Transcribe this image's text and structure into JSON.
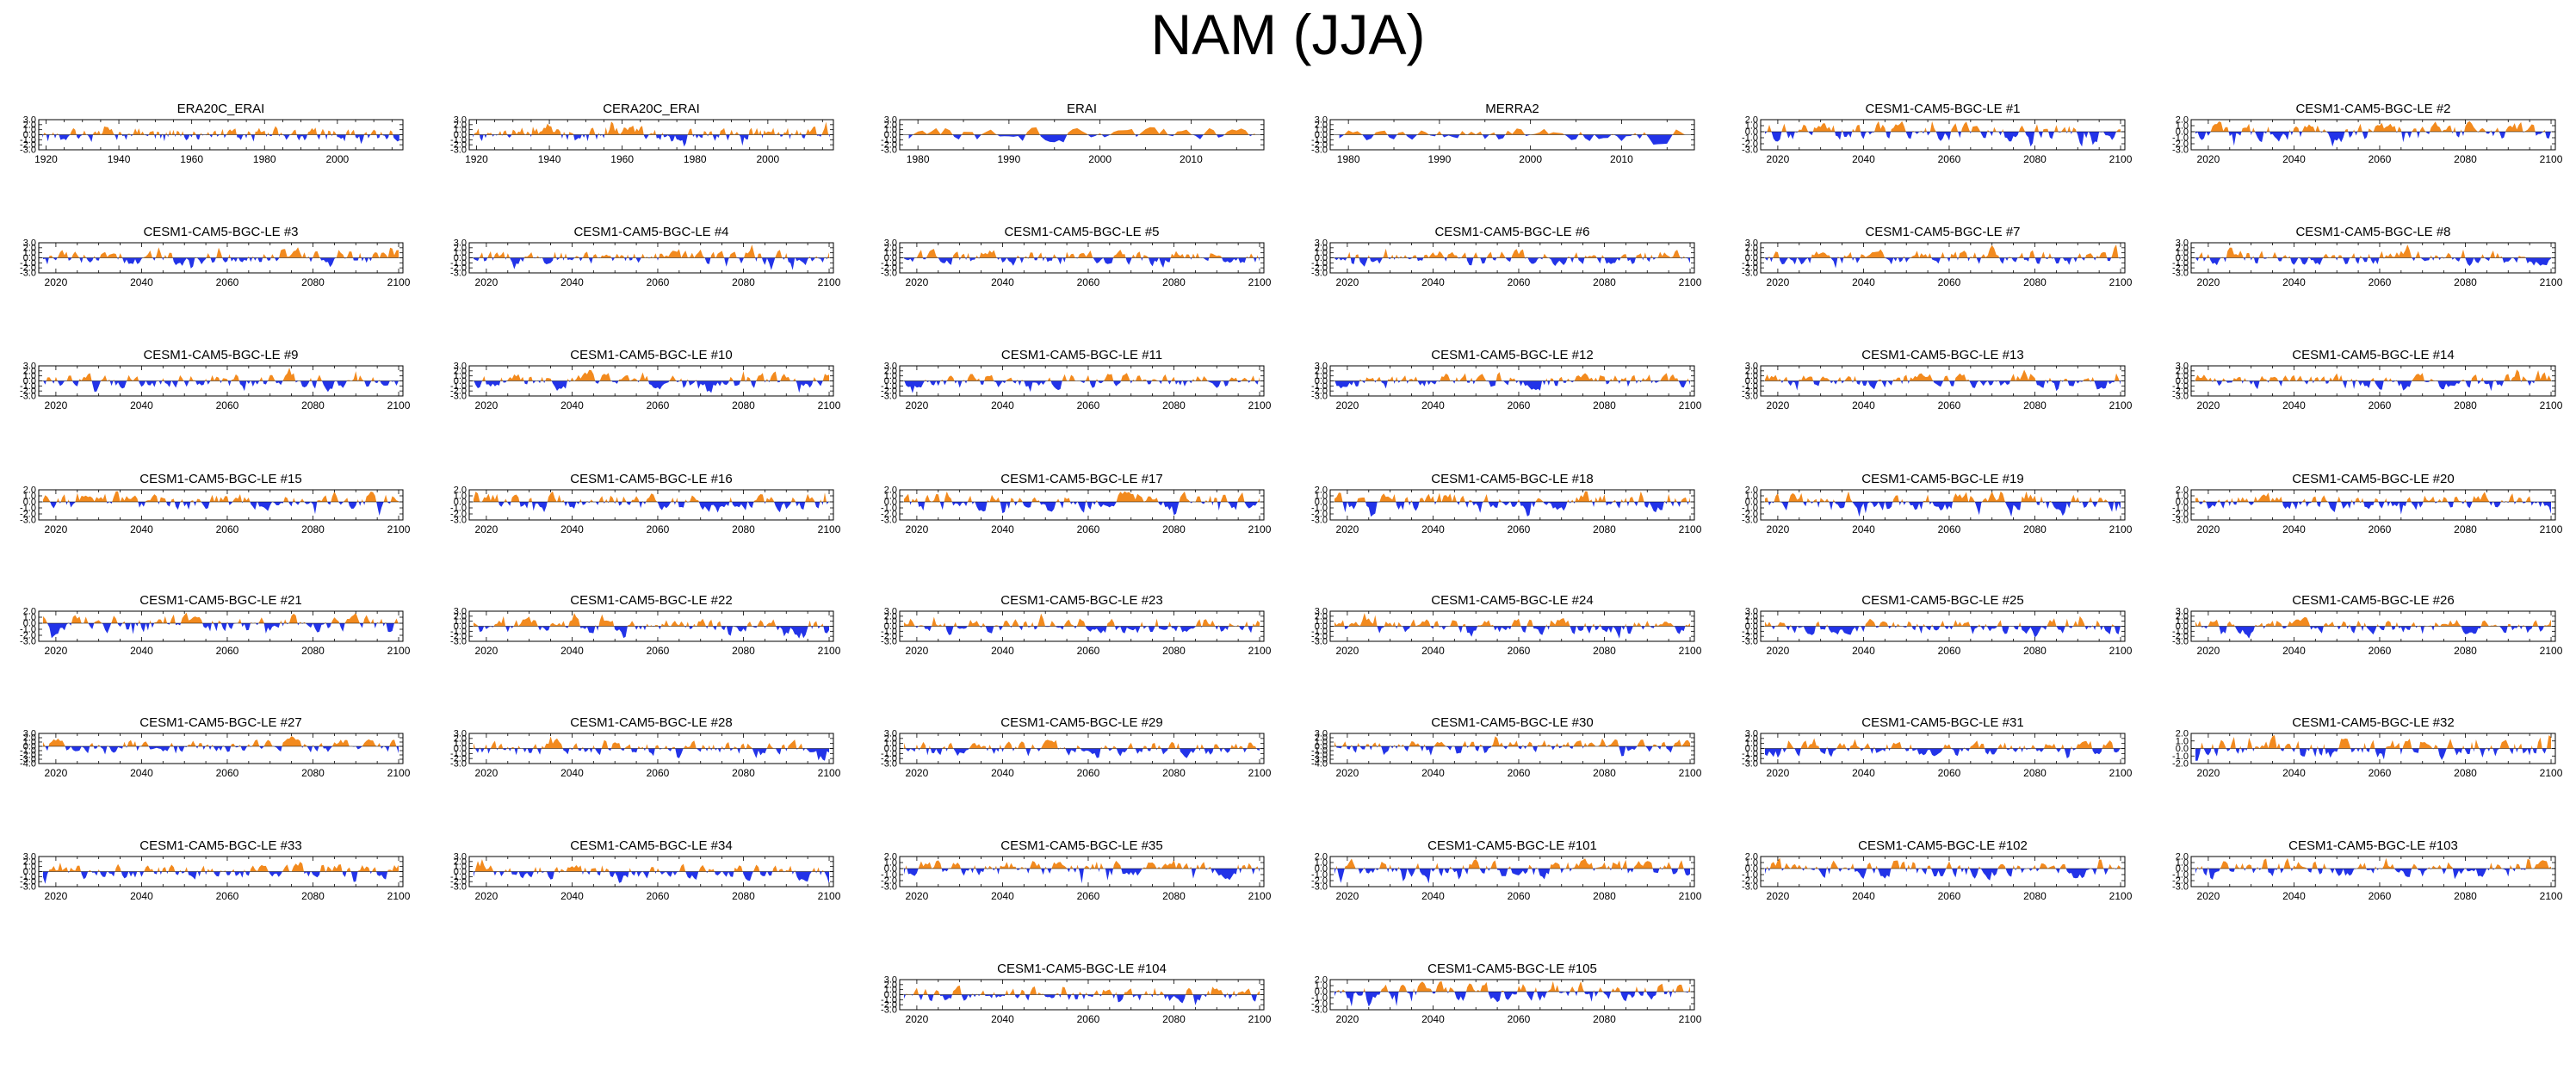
{
  "figure": {
    "title": "NAM (JJA)"
  },
  "colors": {
    "positive": "#f28a1e",
    "negative": "#2233e8",
    "axis": "#000000",
    "background": "#ffffff"
  },
  "chart_data": [
    {
      "type": "area",
      "title": "ERA20C_ERAI",
      "xlim": [
        1918,
        2018
      ],
      "ylim": [
        -3.0,
        3.0
      ],
      "yticks": [
        3.0,
        2.0,
        1.0,
        0.0,
        -1.0,
        -2.0,
        -3.0
      ],
      "xticks": [
        1920,
        1940,
        1960,
        1980,
        2000
      ],
      "grid": false,
      "legend": "none",
      "seed": 1
    },
    {
      "type": "area",
      "title": "CERA20C_ERAI",
      "xlim": [
        1918,
        2018
      ],
      "ylim": [
        -3.0,
        3.0
      ],
      "yticks": [
        3.0,
        2.0,
        1.0,
        0.0,
        -1.0,
        -2.0,
        -3.0
      ],
      "xticks": [
        1920,
        1940,
        1960,
        1980,
        2000
      ],
      "grid": false,
      "legend": "none",
      "seed": 2
    },
    {
      "type": "area",
      "title": "ERAI",
      "xlim": [
        1978,
        2018
      ],
      "ylim": [
        -3.0,
        3.0
      ],
      "yticks": [
        3.0,
        2.0,
        1.0,
        0.0,
        -1.0,
        -2.0,
        -3.0
      ],
      "xticks": [
        1980,
        1990,
        2000,
        2010
      ],
      "grid": false,
      "legend": "none",
      "seed": 3
    },
    {
      "type": "area",
      "title": "MERRA2",
      "xlim": [
        1978,
        2018
      ],
      "ylim": [
        -3.0,
        3.0
      ],
      "yticks": [
        3.0,
        2.0,
        1.0,
        0.0,
        -1.0,
        -2.0,
        -3.0
      ],
      "xticks": [
        1980,
        1990,
        2000,
        2010
      ],
      "grid": false,
      "legend": "none",
      "seed": 4
    },
    {
      "type": "area",
      "title": "CESM1-CAM5-BGC-LE #1",
      "xlim": [
        2016,
        2101
      ],
      "ylim": [
        -3.0,
        2.0
      ],
      "yticks": [
        2.0,
        1.0,
        0.0,
        -1.0,
        -2.0,
        -3.0
      ],
      "xticks": [
        2020,
        2040,
        2060,
        2080,
        2100
      ],
      "grid": false,
      "legend": "none",
      "seed": 5
    },
    {
      "type": "area",
      "title": "CESM1-CAM5-BGC-LE #2",
      "xlim": [
        2016,
        2101
      ],
      "ylim": [
        -3.0,
        2.0
      ],
      "yticks": [
        2.0,
        1.0,
        0.0,
        -1.0,
        -2.0,
        -3.0
      ],
      "xticks": [
        2020,
        2040,
        2060,
        2080,
        2100
      ],
      "grid": false,
      "legend": "none",
      "seed": 6
    },
    {
      "type": "area",
      "title": "CESM1-CAM5-BGC-LE #3",
      "xlim": [
        2016,
        2101
      ],
      "ylim": [
        -3.0,
        3.0
      ],
      "yticks": [
        3.0,
        2.0,
        1.0,
        0.0,
        -1.0,
        -2.0,
        -3.0
      ],
      "xticks": [
        2020,
        2040,
        2060,
        2080,
        2100
      ],
      "grid": false,
      "legend": "none",
      "seed": 7
    },
    {
      "type": "area",
      "title": "CESM1-CAM5-BGC-LE #4",
      "xlim": [
        2016,
        2101
      ],
      "ylim": [
        -3.0,
        3.0
      ],
      "yticks": [
        3.0,
        2.0,
        1.0,
        0.0,
        -1.0,
        -2.0,
        -3.0
      ],
      "xticks": [
        2020,
        2040,
        2060,
        2080,
        2100
      ],
      "grid": false,
      "legend": "none",
      "seed": 8
    },
    {
      "type": "area",
      "title": "CESM1-CAM5-BGC-LE #5",
      "xlim": [
        2016,
        2101
      ],
      "ylim": [
        -3.0,
        3.0
      ],
      "yticks": [
        3.0,
        2.0,
        1.0,
        0.0,
        -1.0,
        -2.0,
        -3.0
      ],
      "xticks": [
        2020,
        2040,
        2060,
        2080,
        2100
      ],
      "grid": false,
      "legend": "none",
      "seed": 9
    },
    {
      "type": "area",
      "title": "CESM1-CAM5-BGC-LE #6",
      "xlim": [
        2016,
        2101
      ],
      "ylim": [
        -3.0,
        3.0
      ],
      "yticks": [
        3.0,
        2.0,
        1.0,
        0.0,
        -1.0,
        -2.0,
        -3.0
      ],
      "xticks": [
        2020,
        2040,
        2060,
        2080,
        2100
      ],
      "grid": false,
      "legend": "none",
      "seed": 10
    },
    {
      "type": "area",
      "title": "CESM1-CAM5-BGC-LE #7",
      "xlim": [
        2016,
        2101
      ],
      "ylim": [
        -3.0,
        3.0
      ],
      "yticks": [
        3.0,
        2.0,
        1.0,
        0.0,
        -1.0,
        -2.0,
        -3.0
      ],
      "xticks": [
        2020,
        2040,
        2060,
        2080,
        2100
      ],
      "grid": false,
      "legend": "none",
      "seed": 11
    },
    {
      "type": "area",
      "title": "CESM1-CAM5-BGC-LE #8",
      "xlim": [
        2016,
        2101
      ],
      "ylim": [
        -3.0,
        3.0
      ],
      "yticks": [
        3.0,
        2.0,
        1.0,
        0.0,
        -1.0,
        -2.0,
        -3.0
      ],
      "xticks": [
        2020,
        2040,
        2060,
        2080,
        2100
      ],
      "grid": false,
      "legend": "none",
      "seed": 12
    },
    {
      "type": "area",
      "title": "CESM1-CAM5-BGC-LE #9",
      "xlim": [
        2016,
        2101
      ],
      "ylim": [
        -3.0,
        3.0
      ],
      "yticks": [
        3.0,
        2.0,
        1.0,
        0.0,
        -1.0,
        -2.0,
        -3.0
      ],
      "xticks": [
        2020,
        2040,
        2060,
        2080,
        2100
      ],
      "grid": false,
      "legend": "none",
      "seed": 13
    },
    {
      "type": "area",
      "title": "CESM1-CAM5-BGC-LE #10",
      "xlim": [
        2016,
        2101
      ],
      "ylim": [
        -3.0,
        3.0
      ],
      "yticks": [
        3.0,
        2.0,
        1.0,
        0.0,
        -1.0,
        -2.0,
        -3.0
      ],
      "xticks": [
        2020,
        2040,
        2060,
        2080,
        2100
      ],
      "grid": false,
      "legend": "none",
      "seed": 14
    },
    {
      "type": "area",
      "title": "CESM1-CAM5-BGC-LE #11",
      "xlim": [
        2016,
        2101
      ],
      "ylim": [
        -3.0,
        3.0
      ],
      "yticks": [
        3.0,
        2.0,
        1.0,
        0.0,
        -1.0,
        -2.0,
        -3.0
      ],
      "xticks": [
        2020,
        2040,
        2060,
        2080,
        2100
      ],
      "grid": false,
      "legend": "none",
      "seed": 15
    },
    {
      "type": "area",
      "title": "CESM1-CAM5-BGC-LE #12",
      "xlim": [
        2016,
        2101
      ],
      "ylim": [
        -3.0,
        3.0
      ],
      "yticks": [
        3.0,
        2.0,
        1.0,
        0.0,
        -1.0,
        -2.0,
        -3.0
      ],
      "xticks": [
        2020,
        2040,
        2060,
        2080,
        2100
      ],
      "grid": false,
      "legend": "none",
      "seed": 16
    },
    {
      "type": "area",
      "title": "CESM1-CAM5-BGC-LE #13",
      "xlim": [
        2016,
        2101
      ],
      "ylim": [
        -3.0,
        3.0
      ],
      "yticks": [
        3.0,
        2.0,
        1.0,
        0.0,
        -1.0,
        -2.0,
        -3.0
      ],
      "xticks": [
        2020,
        2040,
        2060,
        2080,
        2100
      ],
      "grid": false,
      "legend": "none",
      "seed": 17
    },
    {
      "type": "area",
      "title": "CESM1-CAM5-BGC-LE #14",
      "xlim": [
        2016,
        2101
      ],
      "ylim": [
        -3.0,
        3.0
      ],
      "yticks": [
        3.0,
        2.0,
        1.0,
        0.0,
        -1.0,
        -2.0,
        -3.0
      ],
      "xticks": [
        2020,
        2040,
        2060,
        2080,
        2100
      ],
      "grid": false,
      "legend": "none",
      "seed": 18
    },
    {
      "type": "area",
      "title": "CESM1-CAM5-BGC-LE #15",
      "xlim": [
        2016,
        2101
      ],
      "ylim": [
        -3.0,
        2.0
      ],
      "yticks": [
        2.0,
        1.0,
        0.0,
        -1.0,
        -2.0,
        -3.0
      ],
      "xticks": [
        2020,
        2040,
        2060,
        2080,
        2100
      ],
      "grid": false,
      "legend": "none",
      "seed": 19
    },
    {
      "type": "area",
      "title": "CESM1-CAM5-BGC-LE #16",
      "xlim": [
        2016,
        2101
      ],
      "ylim": [
        -3.0,
        2.0
      ],
      "yticks": [
        2.0,
        1.0,
        0.0,
        -1.0,
        -2.0,
        -3.0
      ],
      "xticks": [
        2020,
        2040,
        2060,
        2080,
        2100
      ],
      "grid": false,
      "legend": "none",
      "seed": 20
    },
    {
      "type": "area",
      "title": "CESM1-CAM5-BGC-LE #17",
      "xlim": [
        2016,
        2101
      ],
      "ylim": [
        -3.0,
        2.0
      ],
      "yticks": [
        2.0,
        1.0,
        0.0,
        -1.0,
        -2.0,
        -3.0
      ],
      "xticks": [
        2020,
        2040,
        2060,
        2080,
        2100
      ],
      "grid": false,
      "legend": "none",
      "seed": 21
    },
    {
      "type": "area",
      "title": "CESM1-CAM5-BGC-LE #18",
      "xlim": [
        2016,
        2101
      ],
      "ylim": [
        -3.0,
        2.0
      ],
      "yticks": [
        2.0,
        1.0,
        0.0,
        -1.0,
        -2.0,
        -3.0
      ],
      "xticks": [
        2020,
        2040,
        2060,
        2080,
        2100
      ],
      "grid": false,
      "legend": "none",
      "seed": 22
    },
    {
      "type": "area",
      "title": "CESM1-CAM5-BGC-LE #19",
      "xlim": [
        2016,
        2101
      ],
      "ylim": [
        -3.0,
        2.0
      ],
      "yticks": [
        2.0,
        1.0,
        0.0,
        -1.0,
        -2.0,
        -3.0
      ],
      "xticks": [
        2020,
        2040,
        2060,
        2080,
        2100
      ],
      "grid": false,
      "legend": "none",
      "seed": 23
    },
    {
      "type": "area",
      "title": "CESM1-CAM5-BGC-LE #20",
      "xlim": [
        2016,
        2101
      ],
      "ylim": [
        -3.0,
        2.0
      ],
      "yticks": [
        2.0,
        1.0,
        0.0,
        -1.0,
        -2.0,
        -3.0
      ],
      "xticks": [
        2020,
        2040,
        2060,
        2080,
        2100
      ],
      "grid": false,
      "legend": "none",
      "seed": 24
    },
    {
      "type": "area",
      "title": "CESM1-CAM5-BGC-LE #21",
      "xlim": [
        2016,
        2101
      ],
      "ylim": [
        -3.0,
        2.0
      ],
      "yticks": [
        2.0,
        1.0,
        0.0,
        -1.0,
        -2.0,
        -3.0
      ],
      "xticks": [
        2020,
        2040,
        2060,
        2080,
        2100
      ],
      "grid": false,
      "legend": "none",
      "seed": 25
    },
    {
      "type": "area",
      "title": "CESM1-CAM5-BGC-LE #22",
      "xlim": [
        2016,
        2101
      ],
      "ylim": [
        -3.0,
        3.0
      ],
      "yticks": [
        3.0,
        2.0,
        1.0,
        0.0,
        -1.0,
        -2.0,
        -3.0
      ],
      "xticks": [
        2020,
        2040,
        2060,
        2080,
        2100
      ],
      "grid": false,
      "legend": "none",
      "seed": 26
    },
    {
      "type": "area",
      "title": "CESM1-CAM5-BGC-LE #23",
      "xlim": [
        2016,
        2101
      ],
      "ylim": [
        -3.0,
        3.0
      ],
      "yticks": [
        3.0,
        2.0,
        1.0,
        0.0,
        -1.0,
        -2.0,
        -3.0
      ],
      "xticks": [
        2020,
        2040,
        2060,
        2080,
        2100
      ],
      "grid": false,
      "legend": "none",
      "seed": 27
    },
    {
      "type": "area",
      "title": "CESM1-CAM5-BGC-LE #24",
      "xlim": [
        2016,
        2101
      ],
      "ylim": [
        -3.0,
        3.0
      ],
      "yticks": [
        3.0,
        2.0,
        1.0,
        0.0,
        -1.0,
        -2.0,
        -3.0
      ],
      "xticks": [
        2020,
        2040,
        2060,
        2080,
        2100
      ],
      "grid": false,
      "legend": "none",
      "seed": 28
    },
    {
      "type": "area",
      "title": "CESM1-CAM5-BGC-LE #25",
      "xlim": [
        2016,
        2101
      ],
      "ylim": [
        -3.0,
        3.0
      ],
      "yticks": [
        3.0,
        2.0,
        1.0,
        0.0,
        -1.0,
        -2.0,
        -3.0
      ],
      "xticks": [
        2020,
        2040,
        2060,
        2080,
        2100
      ],
      "grid": false,
      "legend": "none",
      "seed": 29
    },
    {
      "type": "area",
      "title": "CESM1-CAM5-BGC-LE #26",
      "xlim": [
        2016,
        2101
      ],
      "ylim": [
        -3.0,
        3.0
      ],
      "yticks": [
        3.0,
        2.0,
        1.0,
        0.0,
        -1.0,
        -2.0,
        -3.0
      ],
      "xticks": [
        2020,
        2040,
        2060,
        2080,
        2100
      ],
      "grid": false,
      "legend": "none",
      "seed": 30
    },
    {
      "type": "area",
      "title": "CESM1-CAM5-BGC-LE #27",
      "xlim": [
        2016,
        2101
      ],
      "ylim": [
        -4.0,
        3.0
      ],
      "yticks": [
        3.0,
        2.0,
        1.0,
        0.0,
        -1.0,
        -2.0,
        -3.0,
        -4.0
      ],
      "xticks": [
        2020,
        2040,
        2060,
        2080,
        2100
      ],
      "grid": false,
      "legend": "none",
      "seed": 31
    },
    {
      "type": "area",
      "title": "CESM1-CAM5-BGC-LE #28",
      "xlim": [
        2016,
        2101
      ],
      "ylim": [
        -3.0,
        3.0
      ],
      "yticks": [
        3.0,
        2.0,
        1.0,
        0.0,
        -1.0,
        -2.0,
        -3.0
      ],
      "xticks": [
        2020,
        2040,
        2060,
        2080,
        2100
      ],
      "grid": false,
      "legend": "none",
      "seed": 32
    },
    {
      "type": "area",
      "title": "CESM1-CAM5-BGC-LE #29",
      "xlim": [
        2016,
        2101
      ],
      "ylim": [
        -3.0,
        3.0
      ],
      "yticks": [
        3.0,
        2.0,
        1.0,
        0.0,
        -1.0,
        -2.0,
        -3.0
      ],
      "xticks": [
        2020,
        2040,
        2060,
        2080,
        2100
      ],
      "grid": false,
      "legend": "none",
      "seed": 33
    },
    {
      "type": "area",
      "title": "CESM1-CAM5-BGC-LE #30",
      "xlim": [
        2016,
        2101
      ],
      "ylim": [
        -4.0,
        3.0
      ],
      "yticks": [
        3.0,
        2.0,
        1.0,
        0.0,
        -1.0,
        -2.0,
        -3.0,
        -4.0
      ],
      "xticks": [
        2020,
        2040,
        2060,
        2080,
        2100
      ],
      "grid": false,
      "legend": "none",
      "seed": 34
    },
    {
      "type": "area",
      "title": "CESM1-CAM5-BGC-LE #31",
      "xlim": [
        2016,
        2101
      ],
      "ylim": [
        -3.0,
        3.0
      ],
      "yticks": [
        3.0,
        2.0,
        1.0,
        0.0,
        -1.0,
        -2.0,
        -3.0
      ],
      "xticks": [
        2020,
        2040,
        2060,
        2080,
        2100
      ],
      "grid": false,
      "legend": "none",
      "seed": 35
    },
    {
      "type": "area",
      "title": "CESM1-CAM5-BGC-LE #32",
      "xlim": [
        2016,
        2101
      ],
      "ylim": [
        -2.0,
        2.0
      ],
      "yticks": [
        2.0,
        1.0,
        0.0,
        -1.0,
        -2.0
      ],
      "xticks": [
        2020,
        2040,
        2060,
        2080,
        2100
      ],
      "grid": false,
      "legend": "none",
      "seed": 36
    },
    {
      "type": "area",
      "title": "CESM1-CAM5-BGC-LE #33",
      "xlim": [
        2016,
        2101
      ],
      "ylim": [
        -3.0,
        3.0
      ],
      "yticks": [
        3.0,
        2.0,
        1.0,
        0.0,
        -1.0,
        -2.0,
        -3.0
      ],
      "xticks": [
        2020,
        2040,
        2060,
        2080,
        2100
      ],
      "grid": false,
      "legend": "none",
      "seed": 37
    },
    {
      "type": "area",
      "title": "CESM1-CAM5-BGC-LE #34",
      "xlim": [
        2016,
        2101
      ],
      "ylim": [
        -3.0,
        3.0
      ],
      "yticks": [
        3.0,
        2.0,
        1.0,
        0.0,
        -1.0,
        -2.0,
        -3.0
      ],
      "xticks": [
        2020,
        2040,
        2060,
        2080,
        2100
      ],
      "grid": false,
      "legend": "none",
      "seed": 38
    },
    {
      "type": "area",
      "title": "CESM1-CAM5-BGC-LE #35",
      "xlim": [
        2016,
        2101
      ],
      "ylim": [
        -3.0,
        2.0
      ],
      "yticks": [
        2.0,
        1.0,
        0.0,
        -1.0,
        -2.0,
        -3.0
      ],
      "xticks": [
        2020,
        2040,
        2060,
        2080,
        2100
      ],
      "grid": false,
      "legend": "none",
      "seed": 39
    },
    {
      "type": "area",
      "title": "CESM1-CAM5-BGC-LE #101",
      "xlim": [
        2016,
        2101
      ],
      "ylim": [
        -3.0,
        2.0
      ],
      "yticks": [
        2.0,
        1.0,
        0.0,
        -1.0,
        -2.0,
        -3.0
      ],
      "xticks": [
        2020,
        2040,
        2060,
        2080,
        2100
      ],
      "grid": false,
      "legend": "none",
      "seed": 40
    },
    {
      "type": "area",
      "title": "CESM1-CAM5-BGC-LE #102",
      "xlim": [
        2016,
        2101
      ],
      "ylim": [
        -3.0,
        2.0
      ],
      "yticks": [
        2.0,
        1.0,
        0.0,
        -1.0,
        -2.0,
        -3.0
      ],
      "xticks": [
        2020,
        2040,
        2060,
        2080,
        2100
      ],
      "grid": false,
      "legend": "none",
      "seed": 41
    },
    {
      "type": "area",
      "title": "CESM1-CAM5-BGC-LE #103",
      "xlim": [
        2016,
        2101
      ],
      "ylim": [
        -3.0,
        2.0
      ],
      "yticks": [
        2.0,
        1.0,
        0.0,
        -1.0,
        -2.0,
        -3.0
      ],
      "xticks": [
        2020,
        2040,
        2060,
        2080,
        2100
      ],
      "grid": false,
      "legend": "none",
      "seed": 42
    },
    {
      "type": "area",
      "title": "CESM1-CAM5-BGC-LE #104",
      "xlim": [
        2016,
        2101
      ],
      "ylim": [
        -3.0,
        3.0
      ],
      "yticks": [
        3.0,
        2.0,
        1.0,
        0.0,
        -1.0,
        -2.0,
        -3.0
      ],
      "xticks": [
        2020,
        2040,
        2060,
        2080,
        2100
      ],
      "grid": false,
      "legend": "none",
      "seed": 43
    },
    {
      "type": "area",
      "title": "CESM1-CAM5-BGC-LE #105",
      "xlim": [
        2016,
        2101
      ],
      "ylim": [
        -3.0,
        2.0
      ],
      "yticks": [
        2.0,
        1.0,
        0.0,
        -1.0,
        -2.0,
        -3.0
      ],
      "xticks": [
        2020,
        2040,
        2060,
        2080,
        2100
      ],
      "grid": false,
      "legend": "none",
      "seed": 44
    }
  ]
}
